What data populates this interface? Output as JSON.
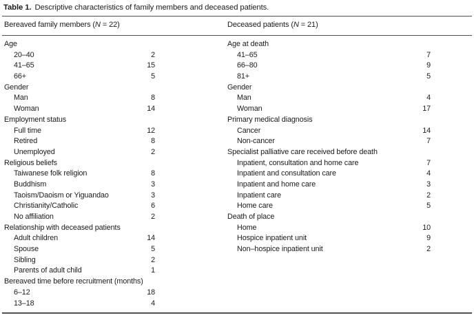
{
  "caption": {
    "label": "Table 1.",
    "text": "Descriptive characteristics of family members and deceased patients."
  },
  "columns": [
    {
      "name": "bereaved-family-members",
      "header": {
        "pre": "Bereaved family members (",
        "n": "N",
        "post": " = 22)"
      },
      "rows": [
        {
          "label": "Age",
          "value": "",
          "indent": 0
        },
        {
          "label": "20–40",
          "value": "2",
          "indent": 1
        },
        {
          "label": "41–65",
          "value": "15",
          "indent": 1
        },
        {
          "label": "66+",
          "value": "5",
          "indent": 1
        },
        {
          "label": "Gender",
          "value": "",
          "indent": 0
        },
        {
          "label": "Man",
          "value": "8",
          "indent": 1
        },
        {
          "label": "Woman",
          "value": "14",
          "indent": 1
        },
        {
          "label": "Employment status",
          "value": "",
          "indent": 0
        },
        {
          "label": "Full time",
          "value": "12",
          "indent": 1
        },
        {
          "label": "Retired",
          "value": "8",
          "indent": 1
        },
        {
          "label": "Unemployed",
          "value": "2",
          "indent": 1
        },
        {
          "label": "Religious beliefs",
          "value": "",
          "indent": 0
        },
        {
          "label": "Taiwanese folk religion",
          "value": "8",
          "indent": 1
        },
        {
          "label": "Buddhism",
          "value": "3",
          "indent": 1
        },
        {
          "label": "Taoism/Daoism or Yiguandao",
          "value": "3",
          "indent": 1
        },
        {
          "label": "Christianity/Catholic",
          "value": "6",
          "indent": 1
        },
        {
          "label": "No affiliation",
          "value": "2",
          "indent": 1
        },
        {
          "label": "Relationship with deceased patients",
          "value": "",
          "indent": 0
        },
        {
          "label": "Adult children",
          "value": "14",
          "indent": 1
        },
        {
          "label": "Spouse",
          "value": "5",
          "indent": 1
        },
        {
          "label": "Sibling",
          "value": "2",
          "indent": 1
        },
        {
          "label": "Parents of adult child",
          "value": "1",
          "indent": 1
        },
        {
          "label": "Bereaved time before recruitment (months)",
          "value": "",
          "indent": 0
        },
        {
          "label": "6–12",
          "value": "18",
          "indent": 1
        },
        {
          "label": "13–18",
          "value": "4",
          "indent": 1
        }
      ]
    },
    {
      "name": "deceased-patients",
      "header": {
        "pre": "Deceased patients (",
        "n": "N",
        "post": " = 21)"
      },
      "rows": [
        {
          "label": "Age at death",
          "value": "",
          "indent": 0
        },
        {
          "label": "41–65",
          "value": "7",
          "indent": 1
        },
        {
          "label": "66–80",
          "value": "9",
          "indent": 1
        },
        {
          "label": "81+",
          "value": "5",
          "indent": 1
        },
        {
          "label": "Gender",
          "value": "",
          "indent": 0
        },
        {
          "label": "Man",
          "value": "4",
          "indent": 1
        },
        {
          "label": "Woman",
          "value": "17",
          "indent": 1
        },
        {
          "label": "Primary medical diagnosis",
          "value": "",
          "indent": 0
        },
        {
          "label": "Cancer",
          "value": "14",
          "indent": 1
        },
        {
          "label": "Non-cancer",
          "value": "7",
          "indent": 1
        },
        {
          "label": "Specialist palliative care received before death",
          "value": "",
          "indent": 0
        },
        {
          "label": "Inpatient, consultation and home care",
          "value": "7",
          "indent": 1
        },
        {
          "label": "Inpatient and consultation care",
          "value": "4",
          "indent": 1
        },
        {
          "label": "Inpatient and home care",
          "value": "3",
          "indent": 1
        },
        {
          "label": "Inpatient care",
          "value": "2",
          "indent": 1
        },
        {
          "label": "Home care",
          "value": "5",
          "indent": 1
        },
        {
          "label": "Death of place",
          "value": "",
          "indent": 0
        },
        {
          "label": "Home",
          "value": "10",
          "indent": 1
        },
        {
          "label": "Hospice inpatient unit",
          "value": "9",
          "indent": 1
        },
        {
          "label": "Non–hospice inpatient unit",
          "value": "2",
          "indent": 1
        }
      ]
    }
  ]
}
